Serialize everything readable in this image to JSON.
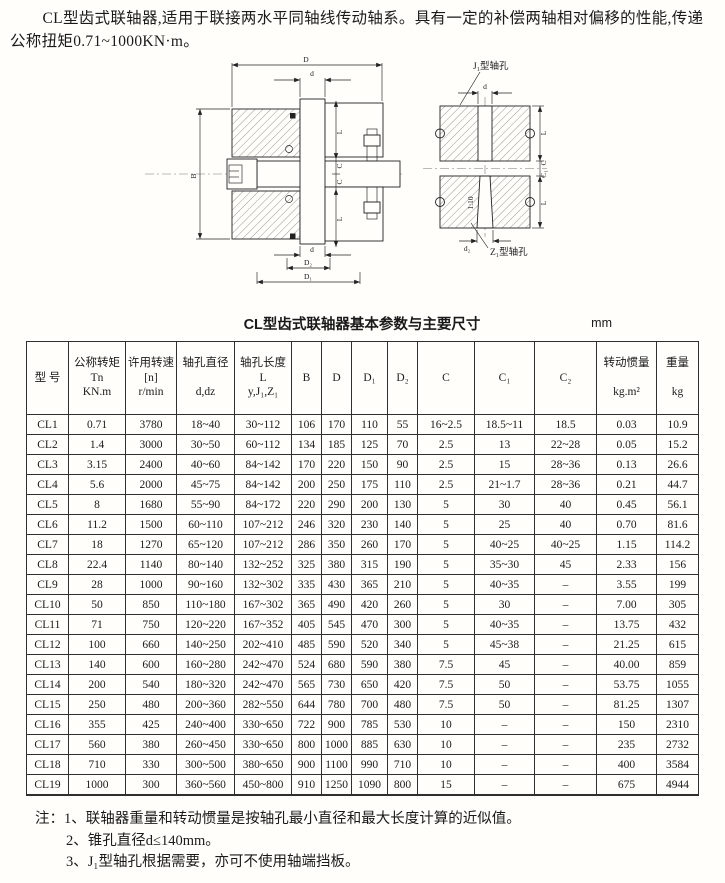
{
  "intro": "CL型齿式联轴器,适用于联接两水平同轴线传动轴系。具有一定的补偿两轴相对偏移的性能,传递公称扭矩0.71~1000KN·m。",
  "diagram": {
    "dim_D": "D",
    "dim_d": "d",
    "dim_B": "B",
    "dim_L": "L",
    "dim_C": "C",
    "dim_C1": "C₁",
    "dim_D2": "D₂",
    "dim_D1": "D₁",
    "dim_d2": "d₂",
    "taper": "1:10",
    "label_j1": "J₁型轴孔",
    "label_z1": "Z₁型轴孔"
  },
  "table": {
    "title": "CL型齿式联轴器基本参数与主要尺寸",
    "unit": "mm",
    "headers": [
      "型 号",
      "公称转矩\nTn\nKN.m",
      "许用转速\n[n]\nr/min",
      "轴孔直径\n \nd,dz",
      "轴孔长度\nL\ny,J₁,Z₁",
      "B",
      "D",
      "D₁",
      "D₂",
      "C",
      "C₁",
      "C₂",
      "转动惯量\n \nkg.m²",
      "重量\n \nkg"
    ],
    "rows": [
      [
        "CL1",
        "0.71",
        "3780",
        "18~40",
        "30~112",
        "106",
        "170",
        "110",
        "55",
        "16~2.5",
        "18.5~11",
        "18.5",
        "0.03",
        "10.9"
      ],
      [
        "CL2",
        "1.4",
        "3000",
        "30~50",
        "60~112",
        "134",
        "185",
        "125",
        "70",
        "2.5",
        "13",
        "22~28",
        "0.05",
        "15.2"
      ],
      [
        "CL3",
        "3.15",
        "2400",
        "40~60",
        "84~142",
        "170",
        "220",
        "150",
        "90",
        "2.5",
        "15",
        "28~36",
        "0.13",
        "26.6"
      ],
      [
        "CL4",
        "5.6",
        "2000",
        "45~75",
        "84~142",
        "200",
        "250",
        "175",
        "110",
        "2.5",
        "21~1.7",
        "28~36",
        "0.21",
        "44.7"
      ],
      [
        "CL5",
        "8",
        "1680",
        "55~90",
        "84~172",
        "220",
        "290",
        "200",
        "130",
        "5",
        "30",
        "40",
        "0.45",
        "56.1"
      ],
      [
        "CL6",
        "11.2",
        "1500",
        "60~110",
        "107~212",
        "246",
        "320",
        "230",
        "140",
        "5",
        "25",
        "40",
        "0.70",
        "81.6"
      ],
      [
        "CL7",
        "18",
        "1270",
        "65~120",
        "107~212",
        "286",
        "350",
        "260",
        "170",
        "5",
        "40~25",
        "40~25",
        "1.15",
        "114.2"
      ],
      [
        "CL8",
        "22.4",
        "1140",
        "80~140",
        "132~252",
        "325",
        "380",
        "315",
        "190",
        "5",
        "35~30",
        "45",
        "2.33",
        "156"
      ],
      [
        "CL9",
        "28",
        "1000",
        "90~160",
        "132~302",
        "335",
        "430",
        "365",
        "210",
        "5",
        "40~35",
        "–",
        "3.55",
        "199"
      ],
      [
        "CL10",
        "50",
        "850",
        "110~180",
        "167~302",
        "365",
        "490",
        "420",
        "260",
        "5",
        "30",
        "–",
        "7.00",
        "305"
      ],
      [
        "CL11",
        "71",
        "750",
        "120~220",
        "167~352",
        "405",
        "545",
        "470",
        "300",
        "5",
        "40~35",
        "–",
        "13.75",
        "432"
      ],
      [
        "CL12",
        "100",
        "660",
        "140~250",
        "202~410",
        "485",
        "590",
        "520",
        "340",
        "5",
        "45~38",
        "–",
        "21.25",
        "615"
      ],
      [
        "CL13",
        "140",
        "600",
        "160~280",
        "242~470",
        "524",
        "680",
        "590",
        "380",
        "7.5",
        "45",
        "–",
        "40.00",
        "859"
      ],
      [
        "CL14",
        "200",
        "540",
        "180~320",
        "242~470",
        "565",
        "730",
        "650",
        "420",
        "7.5",
        "50",
        "–",
        "53.75",
        "1055"
      ],
      [
        "CL15",
        "250",
        "480",
        "200~360",
        "282~550",
        "644",
        "780",
        "700",
        "480",
        "7.5",
        "50",
        "–",
        "81.25",
        "1307"
      ],
      [
        "CL16",
        "355",
        "425",
        "240~400",
        "330~650",
        "722",
        "900",
        "785",
        "530",
        "10",
        "–",
        "–",
        "150",
        "2310"
      ],
      [
        "CL17",
        "560",
        "380",
        "260~450",
        "330~650",
        "800",
        "1000",
        "885",
        "630",
        "10",
        "–",
        "–",
        "235",
        "2732"
      ],
      [
        "CL18",
        "710",
        "330",
        "300~500",
        "380~650",
        "900",
        "1100",
        "990",
        "710",
        "10",
        "–",
        "–",
        "400",
        "3584"
      ],
      [
        "CL19",
        "1000",
        "300",
        "360~560",
        "450~800",
        "910",
        "1250",
        "1090",
        "800",
        "15",
        "–",
        "–",
        "675",
        "4944"
      ]
    ]
  },
  "notes": {
    "prefix": "注：",
    "items": [
      "1、联轴器重量和转动惯量是按轴孔最小直径和最大长度计算的近似值。",
      "2、锥孔直径d≤140mm。",
      "3、J₁型轴孔根据需要，亦可不使用轴端挡板。"
    ]
  }
}
